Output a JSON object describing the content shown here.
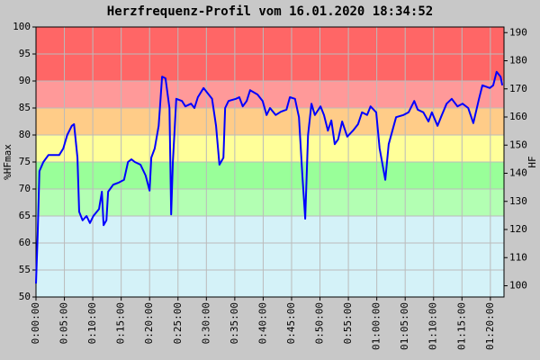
{
  "chart_data": {
    "type": "line",
    "title": "Herzfrequenz-Profil vom 16.01.2020 18:34:52",
    "ylabel": "%HFmax",
    "y2label": "HF",
    "color": "#0000ff",
    "grid": true,
    "xlim": [
      0,
      82.4
    ],
    "ylim": [
      50,
      100
    ],
    "y2lim": [
      96,
      192
    ],
    "yticks": [
      50,
      55,
      60,
      65,
      70,
      75,
      80,
      85,
      90,
      95,
      100
    ],
    "y2ticks": [
      100,
      110,
      120,
      130,
      140,
      150,
      160,
      170,
      180,
      190
    ],
    "xticks": [
      {
        "value": 0,
        "label": "0:00:00"
      },
      {
        "value": 5,
        "label": "0:05:00"
      },
      {
        "value": 10,
        "label": "0:10:00"
      },
      {
        "value": 15,
        "label": "0:15:00"
      },
      {
        "value": 20,
        "label": "0:20:00"
      },
      {
        "value": 25,
        "label": "0:25:00"
      },
      {
        "value": 30,
        "label": "0:30:00"
      },
      {
        "value": 35,
        "label": "0:35:00"
      },
      {
        "value": 40,
        "label": "0:40:00"
      },
      {
        "value": 45,
        "label": "0:45:00"
      },
      {
        "value": 50,
        "label": "0:50:00"
      },
      {
        "value": 55,
        "label": "0:55:00"
      },
      {
        "value": 60,
        "label": "01:00:00"
      },
      {
        "value": 65,
        "label": "01:05:00"
      },
      {
        "value": 70,
        "label": "01:10:00"
      },
      {
        "value": 75,
        "label": "01:15:00"
      },
      {
        "value": 80,
        "label": "01:20:00"
      }
    ],
    "zones": [
      {
        "from": 50,
        "to": 65,
        "color": "#d4f2f8"
      },
      {
        "from": 65,
        "to": 70,
        "color": "#b3ffb3"
      },
      {
        "from": 70,
        "to": 75,
        "color": "#99ff99"
      },
      {
        "from": 75,
        "to": 80,
        "color": "#ffff99"
      },
      {
        "from": 80,
        "to": 85,
        "color": "#ffcc88"
      },
      {
        "from": 85,
        "to": 90,
        "color": "#ff9999"
      },
      {
        "from": 90,
        "to": 100,
        "color": "#ff6666"
      }
    ],
    "x": [
      0,
      0.3,
      0.6,
      1.3,
      2.2,
      4.1,
      4.8,
      5.5,
      6.3,
      6.7,
      7.3,
      7.6,
      8.2,
      8.9,
      9.5,
      10.1,
      11.1,
      11.6,
      11.9,
      12.4,
      12.7,
      13.6,
      14.6,
      15.5,
      16.2,
      16.8,
      17.4,
      18.4,
      19.3,
      20,
      20.3,
      20.9,
      21.6,
      22.2,
      22.8,
      23.5,
      23.8,
      24.1,
      24.7,
      25.7,
      26.3,
      27.3,
      27.9,
      28.5,
      29.5,
      30.4,
      31,
      31.7,
      32.3,
      33,
      33.3,
      33.9,
      35.2,
      35.8,
      36.4,
      37.1,
      37.7,
      39,
      39.9,
      40.6,
      41.2,
      42.2,
      43.1,
      44.1,
      44.7,
      45.6,
      46.3,
      46.9,
      47.4,
      47.9,
      48.5,
      49.1,
      50.1,
      50.7,
      51.4,
      52,
      52.6,
      53.2,
      53.9,
      54.8,
      55.8,
      56.7,
      57.4,
      58.3,
      58.9,
      59.9,
      60.5,
      61.5,
      62.1,
      63.4,
      64.7,
      65.6,
      66.6,
      67.2,
      68.2,
      69.1,
      69.7,
      70.7,
      71.3,
      72.3,
      73.2,
      74.2,
      75.1,
      76.1,
      77,
      78,
      78.6,
      79.9,
      80.5,
      81.1,
      81.8,
      82.1
    ],
    "values": [
      52.5,
      61.7,
      73.3,
      75,
      76.3,
      76.3,
      77.5,
      80,
      81.7,
      82,
      75.8,
      65.8,
      64.2,
      65,
      63.7,
      65,
      66.3,
      69.5,
      63.3,
      64.2,
      69.5,
      70.8,
      71.2,
      71.7,
      75,
      75.5,
      75,
      74.5,
      72.5,
      69.7,
      75.8,
      77.5,
      81.7,
      90.8,
      90.5,
      85,
      65.3,
      75,
      86.7,
      86.3,
      85.3,
      85.8,
      85,
      87,
      88.7,
      87.5,
      86.7,
      81.7,
      74.5,
      75.8,
      85,
      86.3,
      86.7,
      87,
      85.3,
      86.3,
      88.3,
      87.5,
      86.3,
      83.7,
      85,
      83.7,
      84.3,
      84.7,
      87,
      86.7,
      83.3,
      72.5,
      64.5,
      80,
      85.8,
      83.7,
      85.3,
      83.7,
      80.8,
      82.7,
      78.3,
      79.2,
      82.5,
      79.7,
      80.8,
      82,
      84.2,
      83.7,
      85.3,
      84.2,
      77.5,
      71.7,
      78.3,
      83.3,
      83.7,
      84.2,
      86.3,
      84.7,
      84.2,
      82.5,
      84.2,
      81.7,
      83.3,
      85.8,
      86.7,
      85.3,
      85.8,
      85,
      82.2,
      86.7,
      89.2,
      88.7,
      89.2,
      91.7,
      90.8,
      89.2
    ]
  }
}
